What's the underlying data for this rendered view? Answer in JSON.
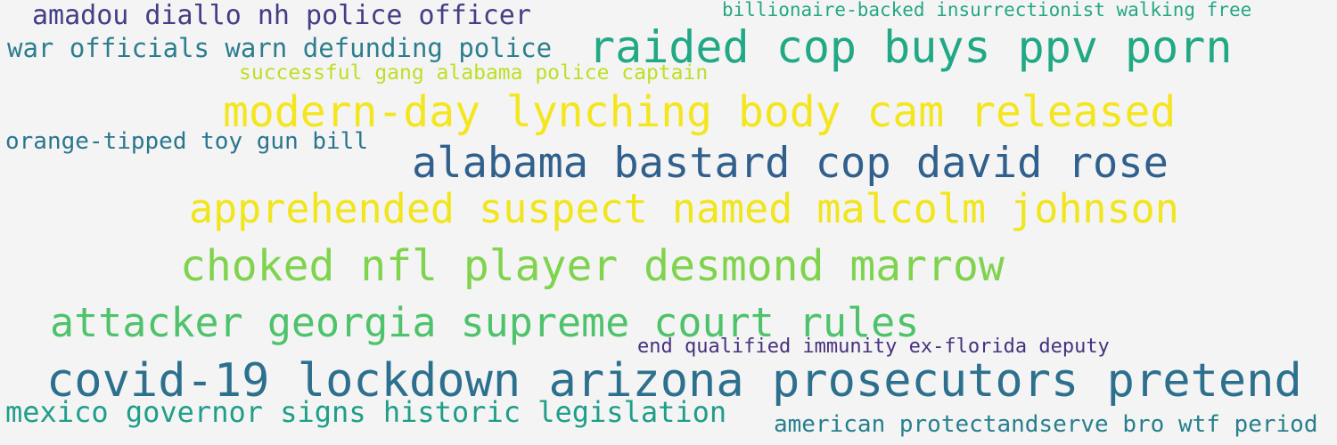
{
  "phrases": [
    {
      "id": "amadou",
      "text": "amadou diallo nh police officer",
      "color": "#433e85"
    },
    {
      "id": "billionaire",
      "text": "billionaire-backed insurrectionist walking free",
      "color": "#25a784"
    },
    {
      "id": "war",
      "text": "war officials warn defunding police",
      "color": "#2c7e8e"
    },
    {
      "id": "raided",
      "text": "raided cop buys ppv porn",
      "color": "#21a885"
    },
    {
      "id": "successful",
      "text": "successful gang alabama police captain",
      "color": "#bddf26"
    },
    {
      "id": "modern",
      "text": "modern-day lynching body cam released",
      "color": "#f4e61e"
    },
    {
      "id": "orange",
      "text": "orange-tipped toy gun bill",
      "color": "#2a768e"
    },
    {
      "id": "alabama",
      "text": "alabama bastard cop david rose",
      "color": "#31608d"
    },
    {
      "id": "apprehended",
      "text": "apprehended suspect named malcolm johnson",
      "color": "#f1e51d"
    },
    {
      "id": "choked",
      "text": "choked nfl player desmond marrow",
      "color": "#7fd34e"
    },
    {
      "id": "attacker",
      "text": "attacker georgia supreme court rules",
      "color": "#4ec36b"
    },
    {
      "id": "end",
      "text": "end qualified immunity ex-florida deputy",
      "color": "#46327e"
    },
    {
      "id": "covid",
      "text": "covid-19 lockdown arizona prosecutors pretend",
      "color": "#2d708e"
    },
    {
      "id": "mexico",
      "text": "mexico governor signs historic legislation",
      "color": "#1f9e89"
    },
    {
      "id": "american",
      "text": "american protectandserve bro wtf period",
      "color": "#277f8e"
    }
  ]
}
